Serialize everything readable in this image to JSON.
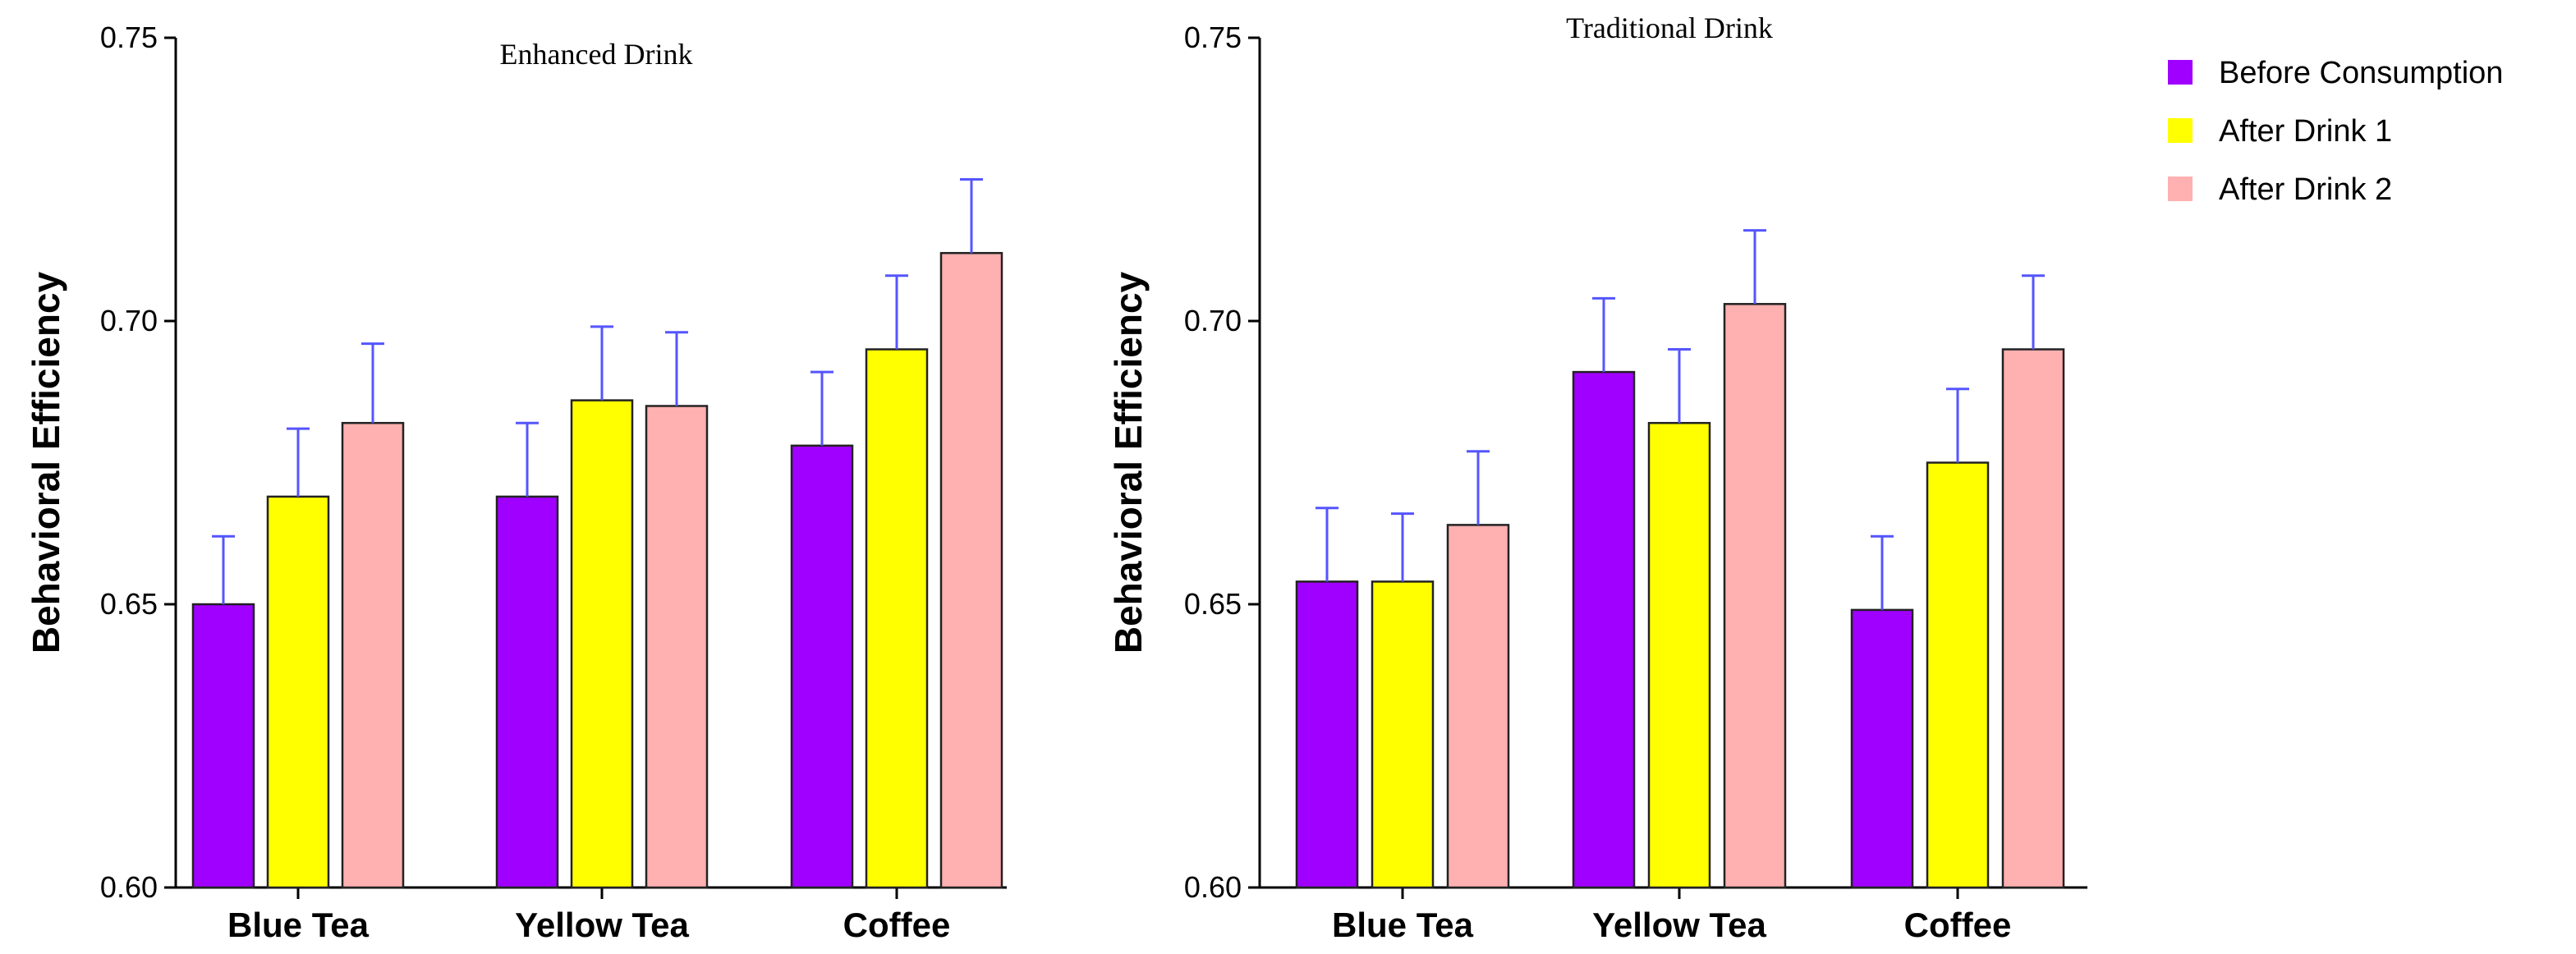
{
  "chart_data": [
    {
      "type": "bar",
      "title": "Enhanced Drink",
      "ylabel": "Behavioral Efficiency",
      "xlabel": "",
      "ylim": [
        0.6,
        0.75
      ],
      "yticks": [
        "0.60",
        "0.65",
        "0.70",
        "0.75"
      ],
      "categories": [
        "Blue Tea",
        "Yellow Tea",
        "Coffee"
      ],
      "series": [
        {
          "name": "Before Consumption",
          "color": "#a000ff",
          "values": [
            0.65,
            0.669,
            0.678
          ],
          "errors": [
            0.012,
            0.013,
            0.013
          ]
        },
        {
          "name": "After Drink 1",
          "color": "#ffff00",
          "values": [
            0.669,
            0.686,
            0.695
          ],
          "errors": [
            0.012,
            0.013,
            0.013
          ]
        },
        {
          "name": "After Drink 2",
          "color": "#ffb0b0",
          "values": [
            0.682,
            0.685,
            0.712
          ],
          "errors": [
            0.014,
            0.013,
            0.013
          ]
        }
      ],
      "error_bar_color": "#5555ff",
      "grid": false
    },
    {
      "type": "bar",
      "title": "Traditional Drink",
      "ylabel": "Behavioral Efficiency",
      "xlabel": "",
      "ylim": [
        0.6,
        0.75
      ],
      "yticks": [
        "0.60",
        "0.65",
        "0.70",
        "0.75"
      ],
      "categories": [
        "Blue Tea",
        "Yellow Tea",
        "Coffee"
      ],
      "series": [
        {
          "name": "Before Consumption",
          "color": "#a000ff",
          "values": [
            0.654,
            0.691,
            0.649
          ],
          "errors": [
            0.013,
            0.013,
            0.013
          ]
        },
        {
          "name": "After Drink 1",
          "color": "#ffff00",
          "values": [
            0.654,
            0.682,
            0.675
          ],
          "errors": [
            0.012,
            0.013,
            0.013
          ]
        },
        {
          "name": "After Drink 2",
          "color": "#ffb0b0",
          "values": [
            0.664,
            0.703,
            0.695
          ],
          "errors": [
            0.013,
            0.013,
            0.013
          ]
        }
      ],
      "error_bar_color": "#5555ff",
      "grid": false
    }
  ],
  "legend": {
    "placement": "top-right",
    "items": [
      {
        "label": "Before Consumption",
        "color": "#a000ff"
      },
      {
        "label": "After Drink 1",
        "color": "#ffff00"
      },
      {
        "label": "After Drink 2",
        "color": "#ffb0b0"
      }
    ]
  }
}
